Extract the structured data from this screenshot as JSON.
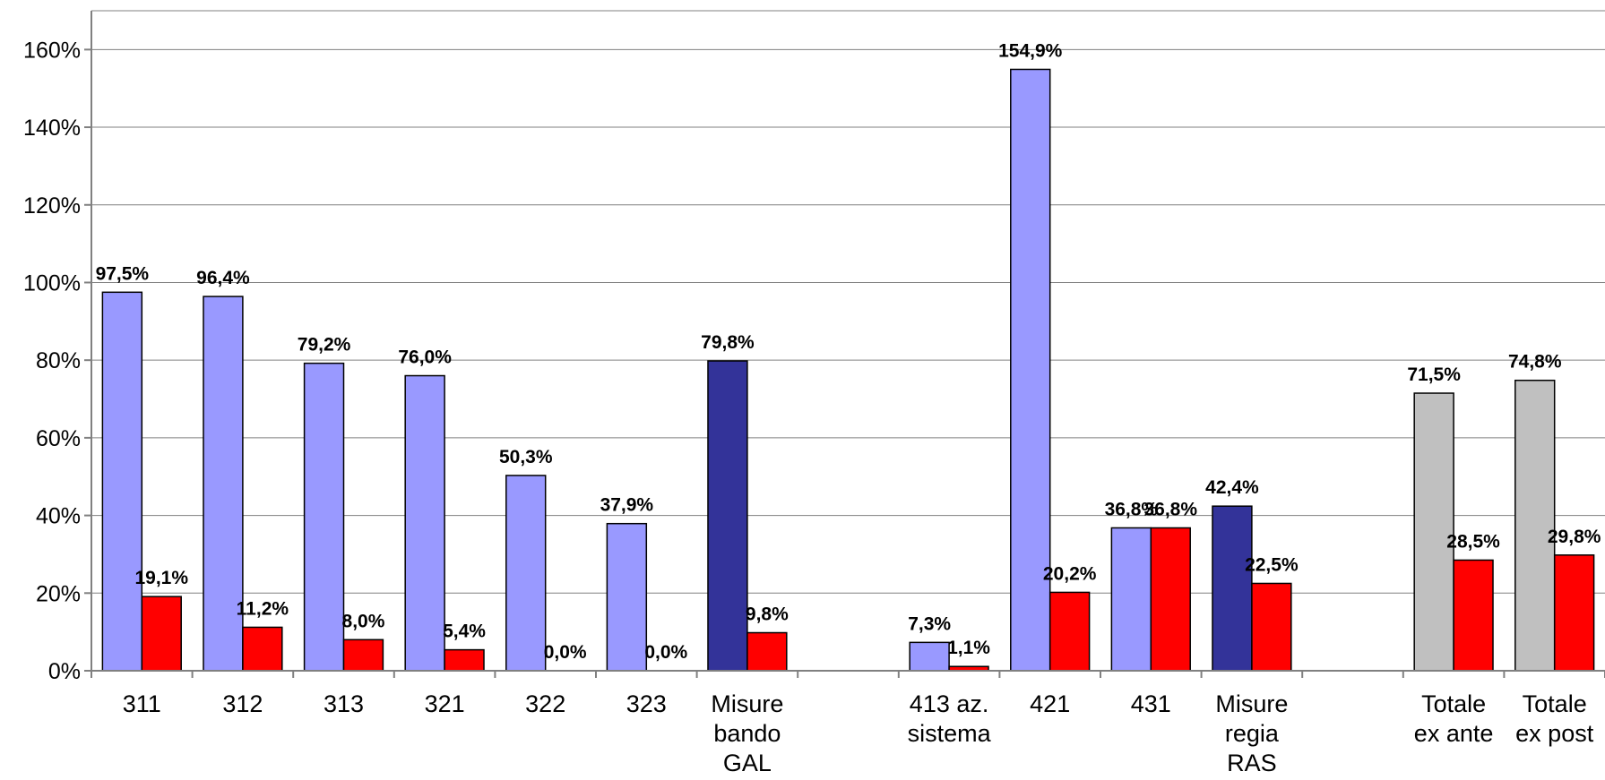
{
  "chart_data": {
    "type": "bar",
    "title": "",
    "xlabel": "",
    "ylabel": "",
    "ylim": [
      0,
      170
    ],
    "yticks": [
      "0%",
      "20%",
      "40%",
      "60%",
      "80%",
      "100%",
      "120%",
      "140%",
      "160%"
    ],
    "ytick_values": [
      0,
      20,
      40,
      60,
      80,
      100,
      120,
      140,
      160
    ],
    "grid": true,
    "legend": "none",
    "colors": {
      "first": "#9999FF",
      "first_emphasis": "#333399",
      "first_total": "#C0C0C0",
      "second": "#FF0000",
      "outline": "#000000"
    },
    "categories": [
      {
        "label": "311",
        "lines": [
          "311"
        ]
      },
      {
        "label": "312",
        "lines": [
          "312"
        ]
      },
      {
        "label": "313",
        "lines": [
          "313"
        ]
      },
      {
        "label": "321",
        "lines": [
          "321"
        ]
      },
      {
        "label": "322",
        "lines": [
          "322"
        ]
      },
      {
        "label": "323",
        "lines": [
          "323"
        ]
      },
      {
        "label": "Misure bando GAL",
        "lines": [
          "Misure",
          "bando",
          "GAL"
        ]
      },
      {
        "label": "",
        "lines": []
      },
      {
        "label": "413 az. sistema",
        "lines": [
          "413 az.",
          "sistema"
        ]
      },
      {
        "label": "421",
        "lines": [
          "421"
        ]
      },
      {
        "label": "431",
        "lines": [
          "431"
        ]
      },
      {
        "label": "Misure regia RAS",
        "lines": [
          "Misure",
          "regia",
          "RAS"
        ]
      },
      {
        "label": "",
        "lines": []
      },
      {
        "label": "Totale ex ante",
        "lines": [
          "Totale",
          "ex ante"
        ]
      },
      {
        "label": "Totale ex post",
        "lines": [
          "Totale",
          "ex post"
        ]
      }
    ],
    "series": [
      {
        "values": [
          97.5,
          96.4,
          79.2,
          76.0,
          50.3,
          37.9,
          79.8,
          null,
          7.3,
          154.9,
          36.8,
          42.4,
          null,
          71.5,
          74.8
        ],
        "labels": [
          "97,5%",
          "96,4%",
          "79,2%",
          "76,0%",
          "50,3%",
          "37,9%",
          "79,8%",
          "",
          "7,3%",
          "154,9%",
          "36,8%",
          "42,4%",
          "",
          "71,5%",
          "74,8%"
        ],
        "color_roles": [
          "first",
          "first",
          "first",
          "first",
          "first",
          "first",
          "first_emphasis",
          "first",
          "first",
          "first",
          "first",
          "first_emphasis",
          "first",
          "first_total",
          "first_total"
        ]
      },
      {
        "values": [
          19.1,
          11.2,
          8.0,
          5.4,
          0.0,
          0.0,
          9.8,
          null,
          1.1,
          20.2,
          36.8,
          22.5,
          null,
          28.5,
          29.8
        ],
        "labels": [
          "19,1%",
          "11,2%",
          "8,0%",
          "5,4%",
          "0,0%",
          "0,0%",
          "9,8%",
          "",
          "1,1%",
          "20,2%",
          "36,8%",
          "22,5%",
          "",
          "28,5%",
          "29,8%"
        ],
        "color_roles": [
          "second",
          "second",
          "second",
          "second",
          "second",
          "second",
          "second",
          "second",
          "second",
          "second",
          "second",
          "second",
          "second",
          "second",
          "second"
        ]
      }
    ]
  }
}
